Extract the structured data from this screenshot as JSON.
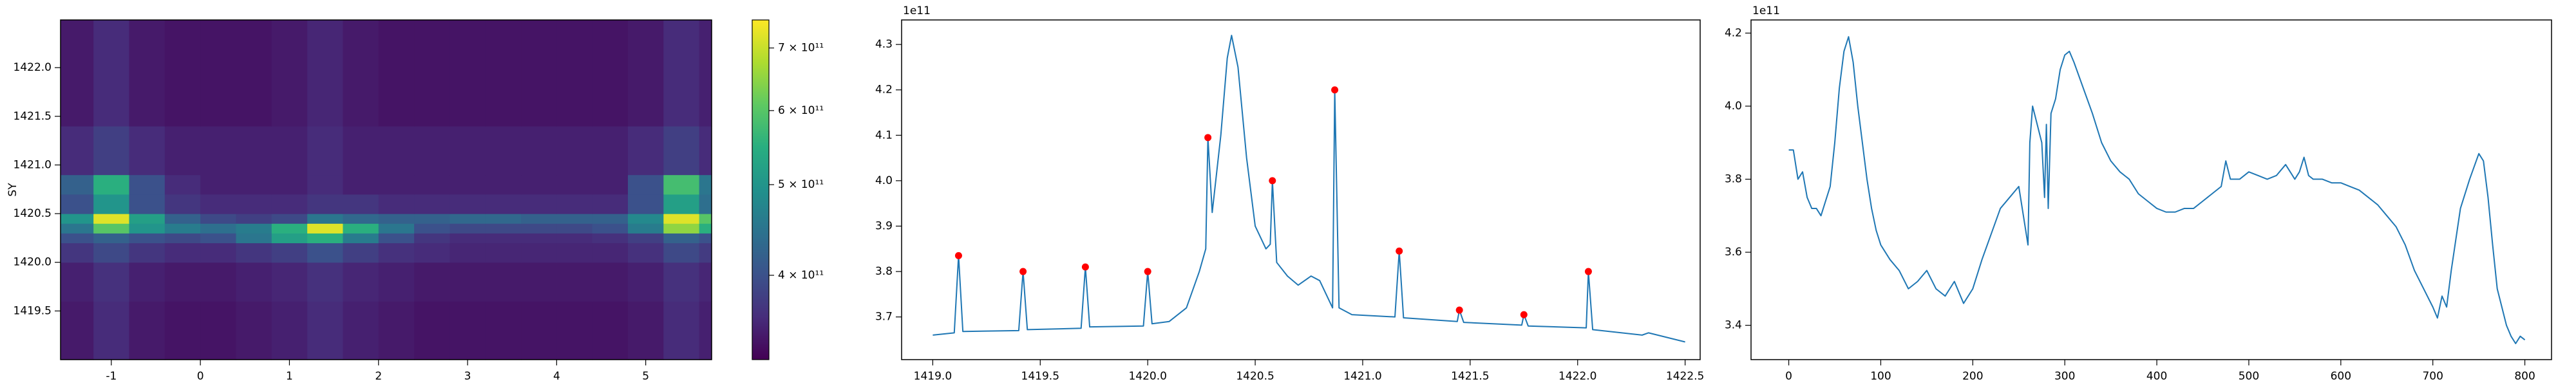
{
  "chart_data": [
    {
      "type": "heatmap",
      "ylabel": "SY",
      "colormap": "viridis",
      "cscale": "log",
      "xlim": [
        -1.57,
        5.74
      ],
      "ylim": [
        1419.0,
        1422.49
      ],
      "xticks": [
        -1,
        0,
        1,
        2,
        3,
        4,
        5
      ],
      "yticks": [
        1419.5,
        {
          "value": 1420,
          "label": "1420.0"
        },
        1420.5,
        {
          "value": 1421,
          "label": "1421.0"
        },
        1421.5,
        {
          "value": 1422,
          "label": "1422.0"
        }
      ],
      "xbins": [
        -1.57,
        -1.2,
        -0.8,
        -0.4,
        0,
        0.4,
        0.8,
        1.2,
        1.6,
        2.0,
        2.4,
        2.8,
        3.2,
        3.6,
        4.0,
        4.4,
        4.8,
        5.2,
        5.6,
        5.74
      ],
      "ybins": [
        1419.0,
        1419.6,
        1420.0,
        1420.2,
        1420.3,
        1420.4,
        1420.5,
        1420.7,
        1420.9,
        1421.4,
        1422.49
      ],
      "z": [
        [
          345000000000.0,
          360000000000.0,
          345000000000.0,
          340000000000.0,
          340000000000.0,
          345000000000.0,
          350000000000.0,
          360000000000.0,
          350000000000.0,
          345000000000.0,
          340000000000.0,
          340000000000.0,
          340000000000.0,
          340000000000.0,
          340000000000.0,
          340000000000.0,
          345000000000.0,
          360000000000.0,
          350000000000.0
        ],
        [
          350000000000.0,
          365000000000.0,
          350000000000.0,
          345000000000.0,
          345000000000.0,
          350000000000.0,
          355000000000.0,
          365000000000.0,
          355000000000.0,
          350000000000.0,
          345000000000.0,
          345000000000.0,
          345000000000.0,
          345000000000.0,
          345000000000.0,
          345000000000.0,
          350000000000.0,
          365000000000.0,
          355000000000.0
        ],
        [
          370000000000.0,
          390000000000.0,
          370000000000.0,
          360000000000.0,
          360000000000.0,
          370000000000.0,
          380000000000.0,
          400000000000.0,
          380000000000.0,
          365000000000.0,
          360000000000.0,
          355000000000.0,
          355000000000.0,
          355000000000.0,
          355000000000.0,
          355000000000.0,
          365000000000.0,
          390000000000.0,
          375000000000.0
        ],
        [
          400000000000.0,
          420000000000.0,
          400000000000.0,
          390000000000.0,
          400000000000.0,
          450000000000.0,
          520000000000.0,
          550000000000.0,
          460000000000.0,
          400000000000.0,
          370000000000.0,
          360000000000.0,
          360000000000.0,
          360000000000.0,
          360000000000.0,
          365000000000.0,
          380000000000.0,
          420000000000.0,
          400000000000.0
        ],
        [
          450000000000.0,
          600000000000.0,
          500000000000.0,
          460000000000.0,
          440000000000.0,
          460000000000.0,
          550000000000.0,
          720000000000.0,
          550000000000.0,
          450000000000.0,
          400000000000.0,
          390000000000.0,
          390000000000.0,
          390000000000.0,
          390000000000.0,
          400000000000.0,
          460000000000.0,
          650000000000.0,
          550000000000.0
        ],
        [
          500000000000.0,
          720000000000.0,
          520000000000.0,
          420000000000.0,
          390000000000.0,
          380000000000.0,
          390000000000.0,
          450000000000.0,
          430000000000.0,
          420000000000.0,
          420000000000.0,
          430000000000.0,
          430000000000.0,
          420000000000.0,
          420000000000.0,
          420000000000.0,
          480000000000.0,
          720000000000.0,
          600000000000.0
        ],
        [
          400000000000.0,
          500000000000.0,
          400000000000.0,
          370000000000.0,
          360000000000.0,
          360000000000.0,
          360000000000.0,
          370000000000.0,
          370000000000.0,
          360000000000.0,
          360000000000.0,
          360000000000.0,
          360000000000.0,
          360000000000.0,
          360000000000.0,
          360000000000.0,
          400000000000.0,
          520000000000.0,
          440000000000.0
        ],
        [
          420000000000.0,
          550000000000.0,
          400000000000.0,
          360000000000.0,
          350000000000.0,
          350000000000.0,
          350000000000.0,
          360000000000.0,
          350000000000.0,
          350000000000.0,
          350000000000.0,
          350000000000.0,
          350000000000.0,
          350000000000.0,
          350000000000.0,
          350000000000.0,
          400000000000.0,
          580000000000.0,
          450000000000.0
        ],
        [
          360000000000.0,
          380000000000.0,
          360000000000.0,
          350000000000.0,
          350000000000.0,
          350000000000.0,
          350000000000.0,
          360000000000.0,
          350000000000.0,
          350000000000.0,
          350000000000.0,
          350000000000.0,
          350000000000.0,
          350000000000.0,
          350000000000.0,
          350000000000.0,
          360000000000.0,
          380000000000.0,
          360000000000.0
        ],
        [
          345000000000.0,
          360000000000.0,
          345000000000.0,
          340000000000.0,
          340000000000.0,
          340000000000.0,
          345000000000.0,
          355000000000.0,
          345000000000.0,
          340000000000.0,
          340000000000.0,
          340000000000.0,
          340000000000.0,
          340000000000.0,
          340000000000.0,
          340000000000.0,
          345000000000.0,
          360000000000.0,
          350000000000.0
        ]
      ],
      "clim": [
        325000000000,
        750000000000
      ],
      "cticks": [
        {
          "value": 400000000000,
          "label": "4 × 10¹¹"
        },
        {
          "value": 500000000000,
          "label": "5 × 10¹¹"
        },
        {
          "value": 600000000000,
          "label": "6 × 10¹¹"
        },
        {
          "value": 700000000000,
          "label": "7 × 10¹¹"
        }
      ]
    },
    {
      "type": "line",
      "offset_text": "1e11",
      "xlim": [
        1418.855,
        1422.57
      ],
      "ylim": [
        3.606,
        4.354
      ],
      "xticks": [
        {
          "value": 1419,
          "label": "1419.0"
        },
        1419.5,
        {
          "value": 1420,
          "label": "1420.0"
        },
        1420.5,
        {
          "value": 1421,
          "label": "1421.0"
        },
        1421.5,
        {
          "value": 1422,
          "label": "1422.0"
        },
        1422.5
      ],
      "yticks": [
        3.7,
        3.8,
        3.9,
        {
          "value": 4,
          "label": "4.0"
        },
        4.1,
        4.2,
        4.3
      ],
      "series": [
        {
          "style": "line",
          "color": "#1f77b4",
          "x": [
            1419.0,
            1419.1,
            1419.12,
            1419.14,
            1419.4,
            1419.42,
            1419.44,
            1419.69,
            1419.71,
            1419.73,
            1419.98,
            1420.0,
            1420.02,
            1420.1,
            1420.18,
            1420.24,
            1420.27,
            1420.28,
            1420.3,
            1420.34,
            1420.37,
            1420.39,
            1420.42,
            1420.46,
            1420.5,
            1420.55,
            1420.57,
            1420.58,
            1420.6,
            1420.65,
            1420.7,
            1420.76,
            1420.8,
            1420.84,
            1420.86,
            1420.87,
            1420.89,
            1420.95,
            1421.15,
            1421.17,
            1421.19,
            1421.44,
            1421.45,
            1421.47,
            1421.74,
            1421.75,
            1421.77,
            1422.04,
            1422.05,
            1422.07,
            1422.3,
            1422.33,
            1422.5
          ],
          "values": [
            3.66,
            3.665,
            3.835,
            3.668,
            3.67,
            3.8,
            3.672,
            3.675,
            3.81,
            3.678,
            3.68,
            3.8,
            3.685,
            3.69,
            3.72,
            3.8,
            3.85,
            4.095,
            3.93,
            4.1,
            4.27,
            4.32,
            4.25,
            4.05,
            3.9,
            3.85,
            3.86,
            4.0,
            3.82,
            3.79,
            3.77,
            3.79,
            3.78,
            3.74,
            3.72,
            4.2,
            3.72,
            3.705,
            3.7,
            3.845,
            3.698,
            3.69,
            3.715,
            3.688,
            3.682,
            3.705,
            3.68,
            3.676,
            3.8,
            3.672,
            3.66,
            3.665,
            3.645
          ]
        },
        {
          "style": "markers",
          "color": "#ff0000",
          "x": [
            1419.12,
            1419.42,
            1419.71,
            1420.0,
            1420.28,
            1420.58,
            1420.87,
            1421.17,
            1421.45,
            1421.75,
            1422.05
          ],
          "values": [
            3.835,
            3.8,
            3.81,
            3.8,
            4.095,
            4.0,
            4.2,
            3.845,
            3.715,
            3.705,
            3.8
          ]
        }
      ]
    },
    {
      "type": "line",
      "offset_text": "1e11",
      "xlim": [
        -41,
        829
      ],
      "ylim": [
        3.306,
        4.236
      ],
      "xticks": [
        0,
        100,
        200,
        300,
        400,
        500,
        600,
        700,
        800
      ],
      "yticks": [
        3.4,
        3.6,
        3.8,
        {
          "value": 4,
          "label": "4.0"
        },
        4.2
      ],
      "series": [
        {
          "style": "line",
          "color": "#1f77b4",
          "x": [
            0,
            5,
            10,
            15,
            20,
            25,
            30,
            35,
            40,
            45,
            50,
            55,
            60,
            65,
            70,
            75,
            80,
            85,
            90,
            95,
            100,
            110,
            120,
            130,
            140,
            150,
            160,
            170,
            180,
            190,
            200,
            210,
            220,
            230,
            240,
            250,
            255,
            260,
            262,
            265,
            270,
            275,
            278,
            280,
            282,
            285,
            290,
            295,
            300,
            305,
            310,
            320,
            330,
            340,
            350,
            360,
            370,
            380,
            390,
            400,
            410,
            420,
            430,
            440,
            450,
            460,
            470,
            475,
            480,
            490,
            500,
            510,
            520,
            530,
            540,
            550,
            555,
            560,
            565,
            570,
            580,
            590,
            600,
            610,
            620,
            630,
            640,
            650,
            660,
            670,
            680,
            690,
            700,
            705,
            710,
            715,
            720,
            730,
            740,
            750,
            755,
            760,
            765,
            770,
            775,
            780,
            785,
            790,
            795,
            800
          ],
          "values": [
            3.88,
            3.88,
            3.8,
            3.82,
            3.75,
            3.72,
            3.72,
            3.7,
            3.74,
            3.78,
            3.9,
            4.05,
            4.15,
            4.19,
            4.12,
            4.0,
            3.9,
            3.8,
            3.72,
            3.66,
            3.62,
            3.58,
            3.55,
            3.5,
            3.52,
            3.55,
            3.5,
            3.48,
            3.52,
            3.46,
            3.5,
            3.58,
            3.65,
            3.72,
            3.75,
            3.78,
            3.7,
            3.62,
            3.9,
            4.0,
            3.95,
            3.9,
            3.75,
            3.95,
            3.72,
            3.98,
            4.02,
            4.1,
            4.14,
            4.15,
            4.12,
            4.05,
            3.98,
            3.9,
            3.85,
            3.82,
            3.8,
            3.76,
            3.74,
            3.72,
            3.71,
            3.71,
            3.72,
            3.72,
            3.74,
            3.76,
            3.78,
            3.85,
            3.8,
            3.8,
            3.82,
            3.81,
            3.8,
            3.81,
            3.84,
            3.8,
            3.82,
            3.86,
            3.81,
            3.8,
            3.8,
            3.79,
            3.79,
            3.78,
            3.77,
            3.75,
            3.73,
            3.7,
            3.67,
            3.62,
            3.55,
            3.5,
            3.45,
            3.42,
            3.48,
            3.45,
            3.55,
            3.72,
            3.8,
            3.87,
            3.85,
            3.75,
            3.62,
            3.5,
            3.45,
            3.4,
            3.37,
            3.35,
            3.37,
            3.36
          ]
        }
      ]
    }
  ]
}
